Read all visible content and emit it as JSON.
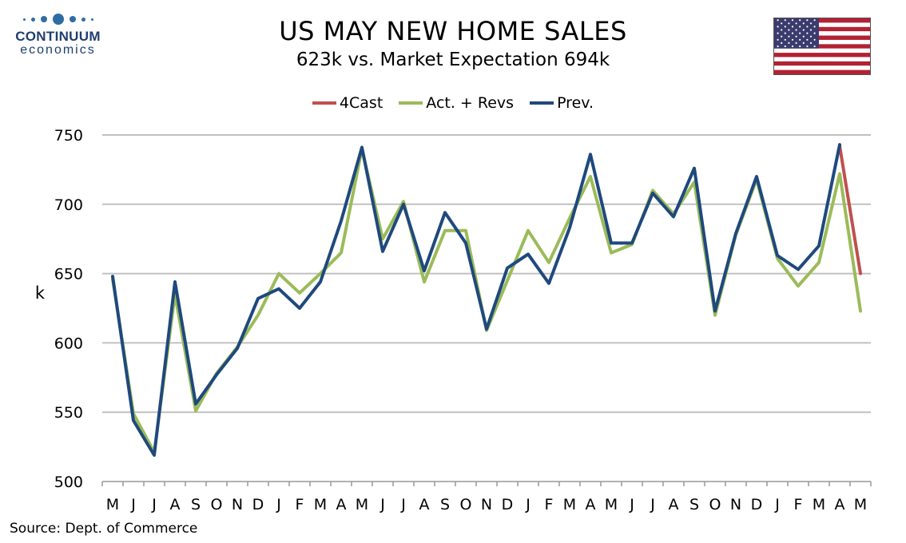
{
  "header": {
    "title": "US MAY NEW HOME SALES",
    "subtitle": "623k vs. Market Expectation 694k"
  },
  "logo": {
    "name": "CONTINUUM",
    "sub": "economics"
  },
  "source": "Source: Dept. of Commerce",
  "colors": {
    "forecast": "#c0504d",
    "actual": "#9bbb59",
    "previous": "#1f497d",
    "grid": "#c0c0c0",
    "logo": "#2e6da4",
    "flag_red": "#b22234",
    "flag_blue": "#3c3b6e"
  },
  "icons": [
    "us-flag-icon",
    "continuum-logo-icon"
  ],
  "chart_data": {
    "type": "line",
    "title": "US MAY NEW HOME SALES",
    "subtitle": "623k vs. Market Expectation 694k",
    "xlabel": "",
    "ylabel": "k",
    "ylim": [
      500,
      750
    ],
    "yticks": [
      500,
      550,
      600,
      650,
      700,
      750
    ],
    "grid": true,
    "legend_position": "top-center",
    "categories": [
      "M",
      "J",
      "J",
      "A",
      "S",
      "O",
      "N",
      "D",
      "J",
      "F",
      "M",
      "A",
      "M",
      "J",
      "J",
      "A",
      "S",
      "O",
      "N",
      "D",
      "J",
      "F",
      "M",
      "A",
      "M",
      "J",
      "J",
      "A",
      "S",
      "O",
      "N",
      "D",
      "J",
      "F",
      "M",
      "A",
      "M"
    ],
    "series": [
      {
        "name": "4Cast",
        "color": "#c0504d",
        "values": [
          null,
          null,
          null,
          null,
          null,
          null,
          null,
          null,
          null,
          null,
          null,
          null,
          null,
          null,
          null,
          null,
          null,
          null,
          null,
          null,
          null,
          null,
          null,
          null,
          null,
          null,
          null,
          null,
          null,
          null,
          null,
          null,
          null,
          null,
          null,
          742,
          650
        ]
      },
      {
        "name": "Act. + Revs",
        "color": "#9bbb59",
        "values": [
          646,
          549,
          521,
          635,
          551,
          578,
          597,
          620,
          650,
          636,
          650,
          665,
          740,
          675,
          702,
          644,
          681,
          681,
          609,
          645,
          681,
          658,
          690,
          720,
          665,
          671,
          710,
          693,
          716,
          620,
          678,
          718,
          661,
          641,
          658,
          722,
          623
        ]
      },
      {
        "name": "Prev.",
        "color": "#1f497d",
        "values": [
          648,
          544,
          519,
          644,
          556,
          577,
          596,
          632,
          639,
          625,
          644,
          688,
          741,
          666,
          700,
          652,
          694,
          672,
          610,
          654,
          664,
          643,
          683,
          736,
          672,
          672,
          708,
          691,
          726,
          623,
          679,
          720,
          663,
          653,
          670,
          743,
          null
        ]
      }
    ]
  }
}
